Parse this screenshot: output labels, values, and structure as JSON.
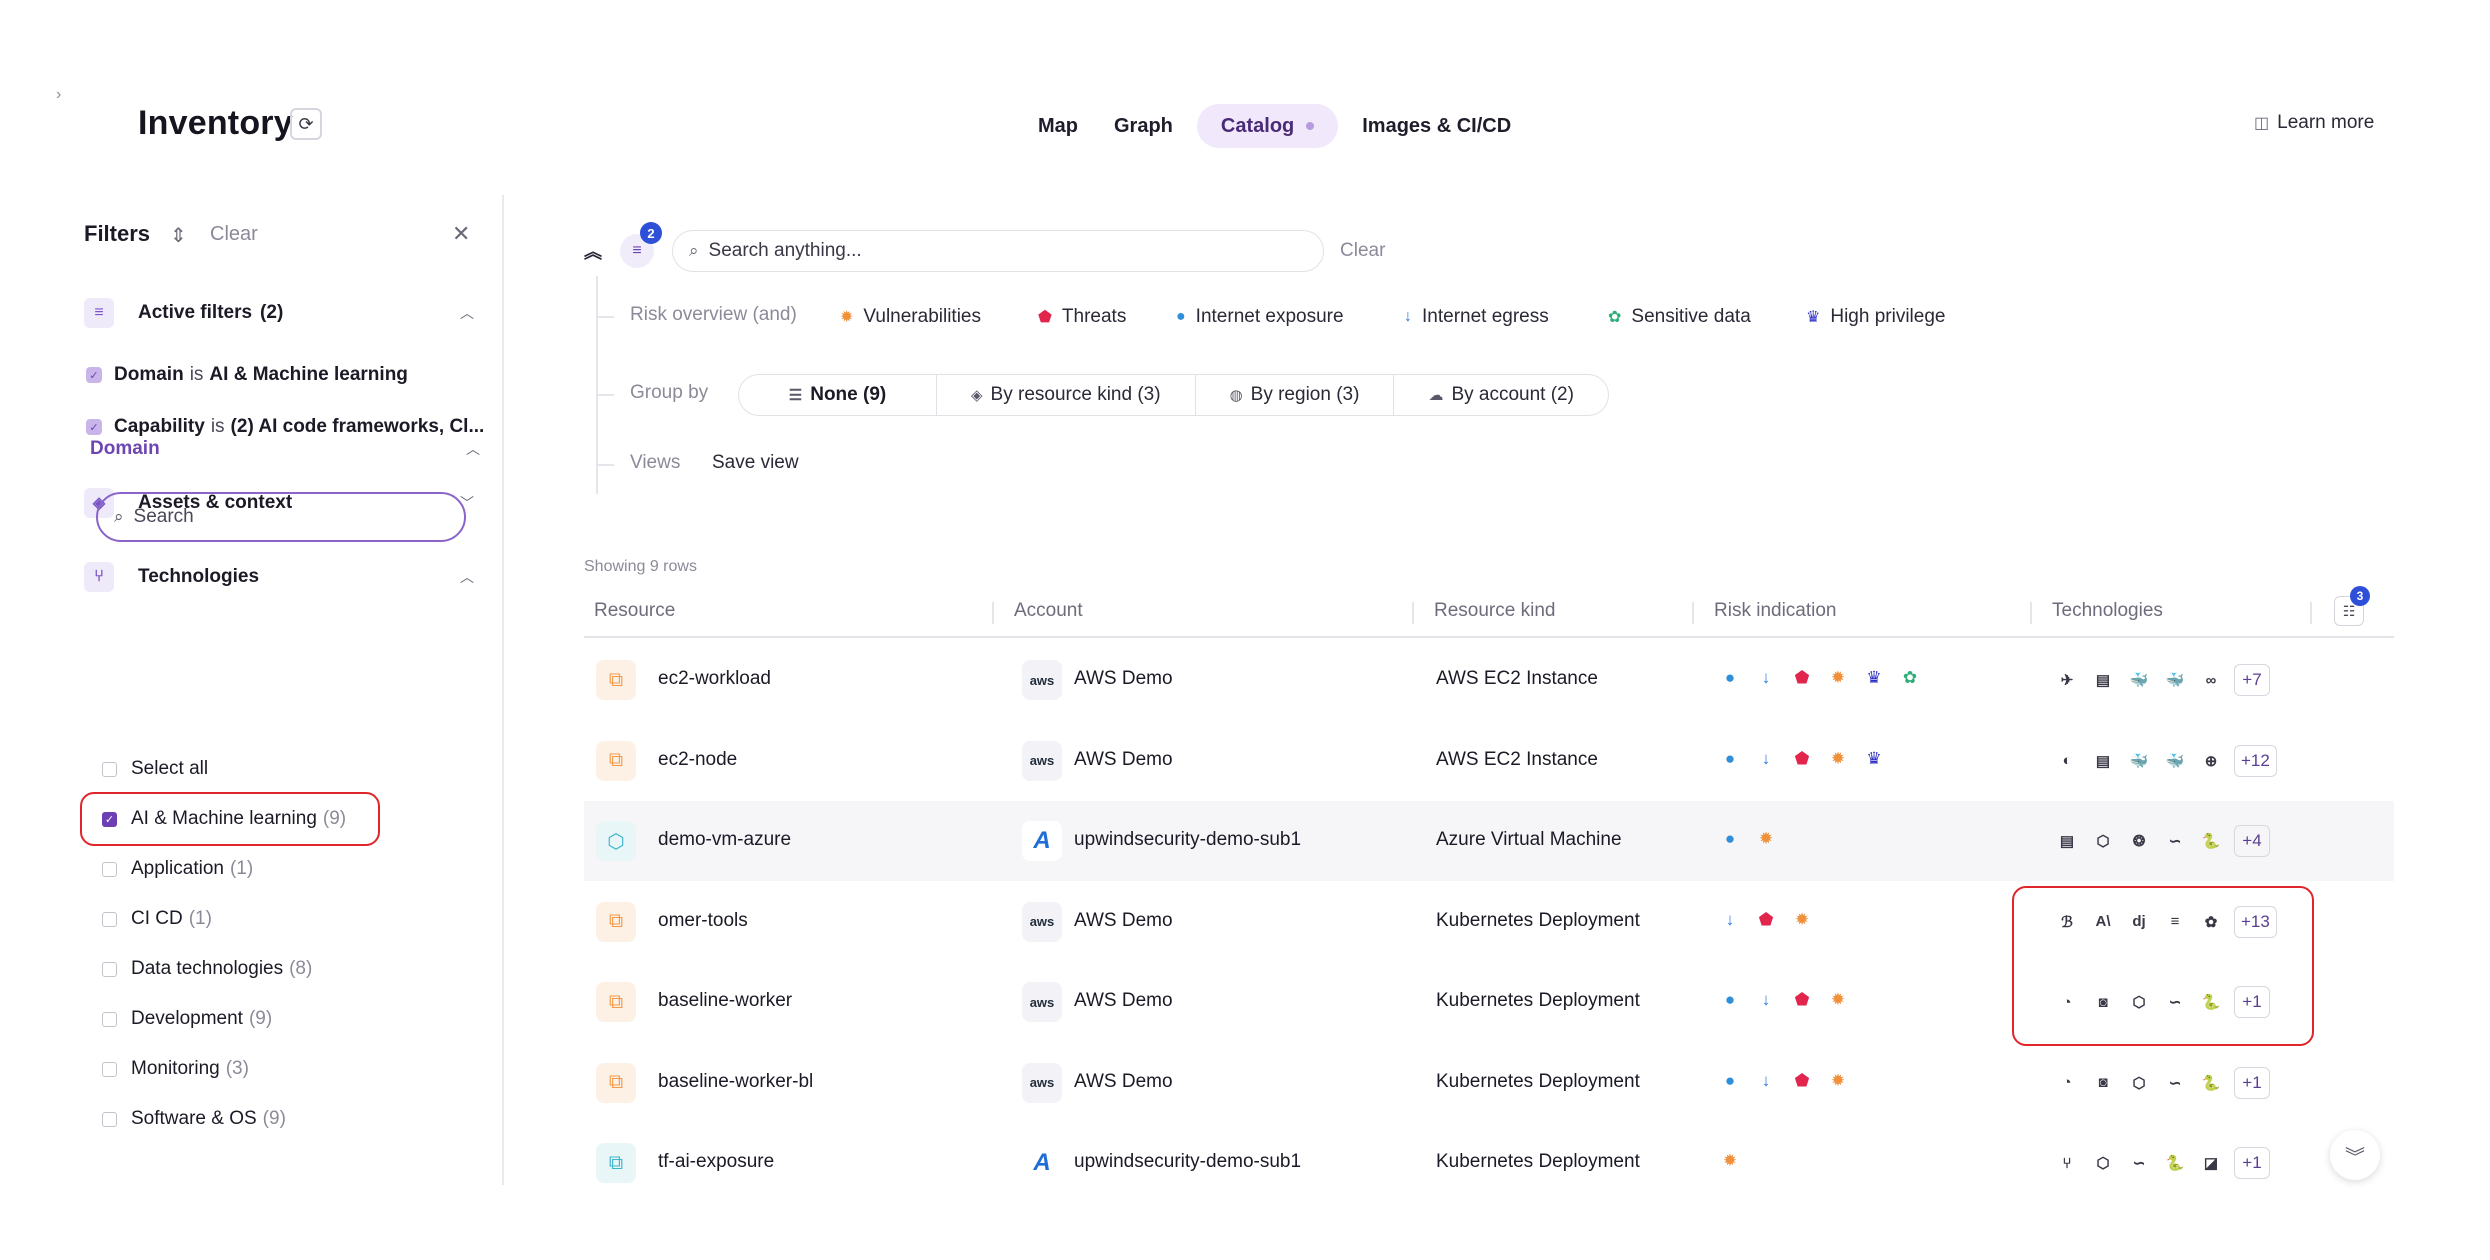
{
  "header": {
    "sidebar_toggle": "›",
    "title": "Inventory",
    "refresh_icon": "⟳",
    "tabs": [
      {
        "label": "Map"
      },
      {
        "label": "Graph"
      },
      {
        "label": "Catalog"
      },
      {
        "label": "Images & CI/CD"
      }
    ],
    "learn_more": "Learn more"
  },
  "filters": {
    "title": "Filters",
    "clear": "Clear",
    "close": "✕",
    "active_filters": {
      "label": "Active filters",
      "count": "(2)"
    },
    "active_items": [
      {
        "field": "Domain",
        "op": "is",
        "value": "AI & Machine learning"
      },
      {
        "field": "Capability",
        "op": "is",
        "value": "(2) AI code frameworks, Cl..."
      }
    ],
    "assets_context": {
      "label": "Assets & context"
    },
    "technologies": {
      "label": "Technologies"
    },
    "domain": {
      "label": "Domain",
      "search_placeholder": "Search",
      "select_all": "Select all",
      "options": [
        {
          "label": "AI & Machine learning",
          "count": "(9)",
          "checked": true
        },
        {
          "label": "Application",
          "count": "(1)",
          "checked": false
        },
        {
          "label": "CI CD",
          "count": "(1)",
          "checked": false
        },
        {
          "label": "Data technologies",
          "count": "(8)",
          "checked": false
        },
        {
          "label": "Development",
          "count": "(9)",
          "checked": false
        },
        {
          "label": "Monitoring",
          "count": "(3)",
          "checked": false
        },
        {
          "label": "Software & OS",
          "count": "(9)",
          "checked": false
        }
      ]
    }
  },
  "toolbar": {
    "filter_badge": "2",
    "search_placeholder": "Search anything...",
    "clear": "Clear",
    "risk_label": "Risk overview (and)",
    "risk_chips": [
      {
        "label": "Vulnerabilities",
        "icon": "vulnerability-icon"
      },
      {
        "label": "Threats",
        "icon": "threat-shield-icon"
      },
      {
        "label": "Internet exposure",
        "icon": "globe-icon"
      },
      {
        "label": "Internet egress",
        "icon": "egress-arrow-icon"
      },
      {
        "label": "Sensitive data",
        "icon": "sensitive-data-icon"
      },
      {
        "label": "High privilege",
        "icon": "crown-icon"
      }
    ],
    "group_label": "Group by",
    "group_options": [
      {
        "label": "None (9)"
      },
      {
        "label": "By resource kind (3)"
      },
      {
        "label": "By region (3)"
      },
      {
        "label": "By account (2)"
      }
    ],
    "views_label": "Views",
    "save_view": "Save view"
  },
  "table": {
    "showing": "Showing 9 rows",
    "columns": [
      "Resource",
      "Account",
      "Resource kind",
      "Risk indication",
      "Technologies"
    ],
    "settings_badge": "3",
    "rows": [
      {
        "resource": "ec2-workload",
        "account": "AWS Demo",
        "provider": "aws",
        "kind": "AWS EC2 Instance",
        "risks": [
          "globe",
          "egress",
          "threat",
          "vuln",
          "priv",
          "data"
        ],
        "tech": [
          "✈",
          "▤",
          "🐳",
          "🐳",
          "∞"
        ],
        "more": "+7"
      },
      {
        "resource": "ec2-node",
        "account": "AWS Demo",
        "provider": "aws",
        "kind": "AWS EC2 Instance",
        "risks": [
          "globe",
          "egress",
          "threat",
          "vuln",
          "priv"
        ],
        "tech": [
          "◐",
          "▤",
          "🐳",
          "🐳",
          "⊕"
        ],
        "more": "+12"
      },
      {
        "resource": "demo-vm-azure",
        "account": "upwindsecurity-demo-sub1",
        "provider": "azure",
        "kind": "Azure Virtual Machine",
        "risks": [
          "globe",
          "vuln"
        ],
        "tech": [
          "▤",
          "⬡",
          "❂",
          "∽",
          "🐍"
        ],
        "more": "+4"
      },
      {
        "resource": "omer-tools",
        "account": "AWS Demo",
        "provider": "aws",
        "kind": "Kubernetes Deployment",
        "risks": [
          "egress",
          "threat",
          "vuln"
        ],
        "tech": [
          "ℬ",
          "A\\",
          "dj",
          "≡",
          "✿"
        ],
        "more": "+13"
      },
      {
        "resource": "baseline-worker",
        "account": "AWS Demo",
        "provider": "aws",
        "kind": "Kubernetes Deployment",
        "risks": [
          "globe",
          "egress",
          "threat",
          "vuln"
        ],
        "tech": [
          "◔",
          "◙",
          "⬡",
          "∽",
          "🐍"
        ],
        "more": "+1"
      },
      {
        "resource": "baseline-worker-bl",
        "account": "AWS Demo",
        "provider": "aws",
        "kind": "Kubernetes Deployment",
        "risks": [
          "globe",
          "egress",
          "threat",
          "vuln"
        ],
        "tech": [
          "◔",
          "◙",
          "⬡",
          "∽",
          "🐍"
        ],
        "more": "+1"
      },
      {
        "resource": "tf-ai-exposure",
        "account": "upwindsecurity-demo-sub1",
        "provider": "azure",
        "kind": "Kubernetes Deployment",
        "risks": [
          "vuln"
        ],
        "tech": [
          "⑂",
          "⬡",
          "∽",
          "🐍",
          "◪"
        ],
        "more": "+1"
      }
    ]
  }
}
